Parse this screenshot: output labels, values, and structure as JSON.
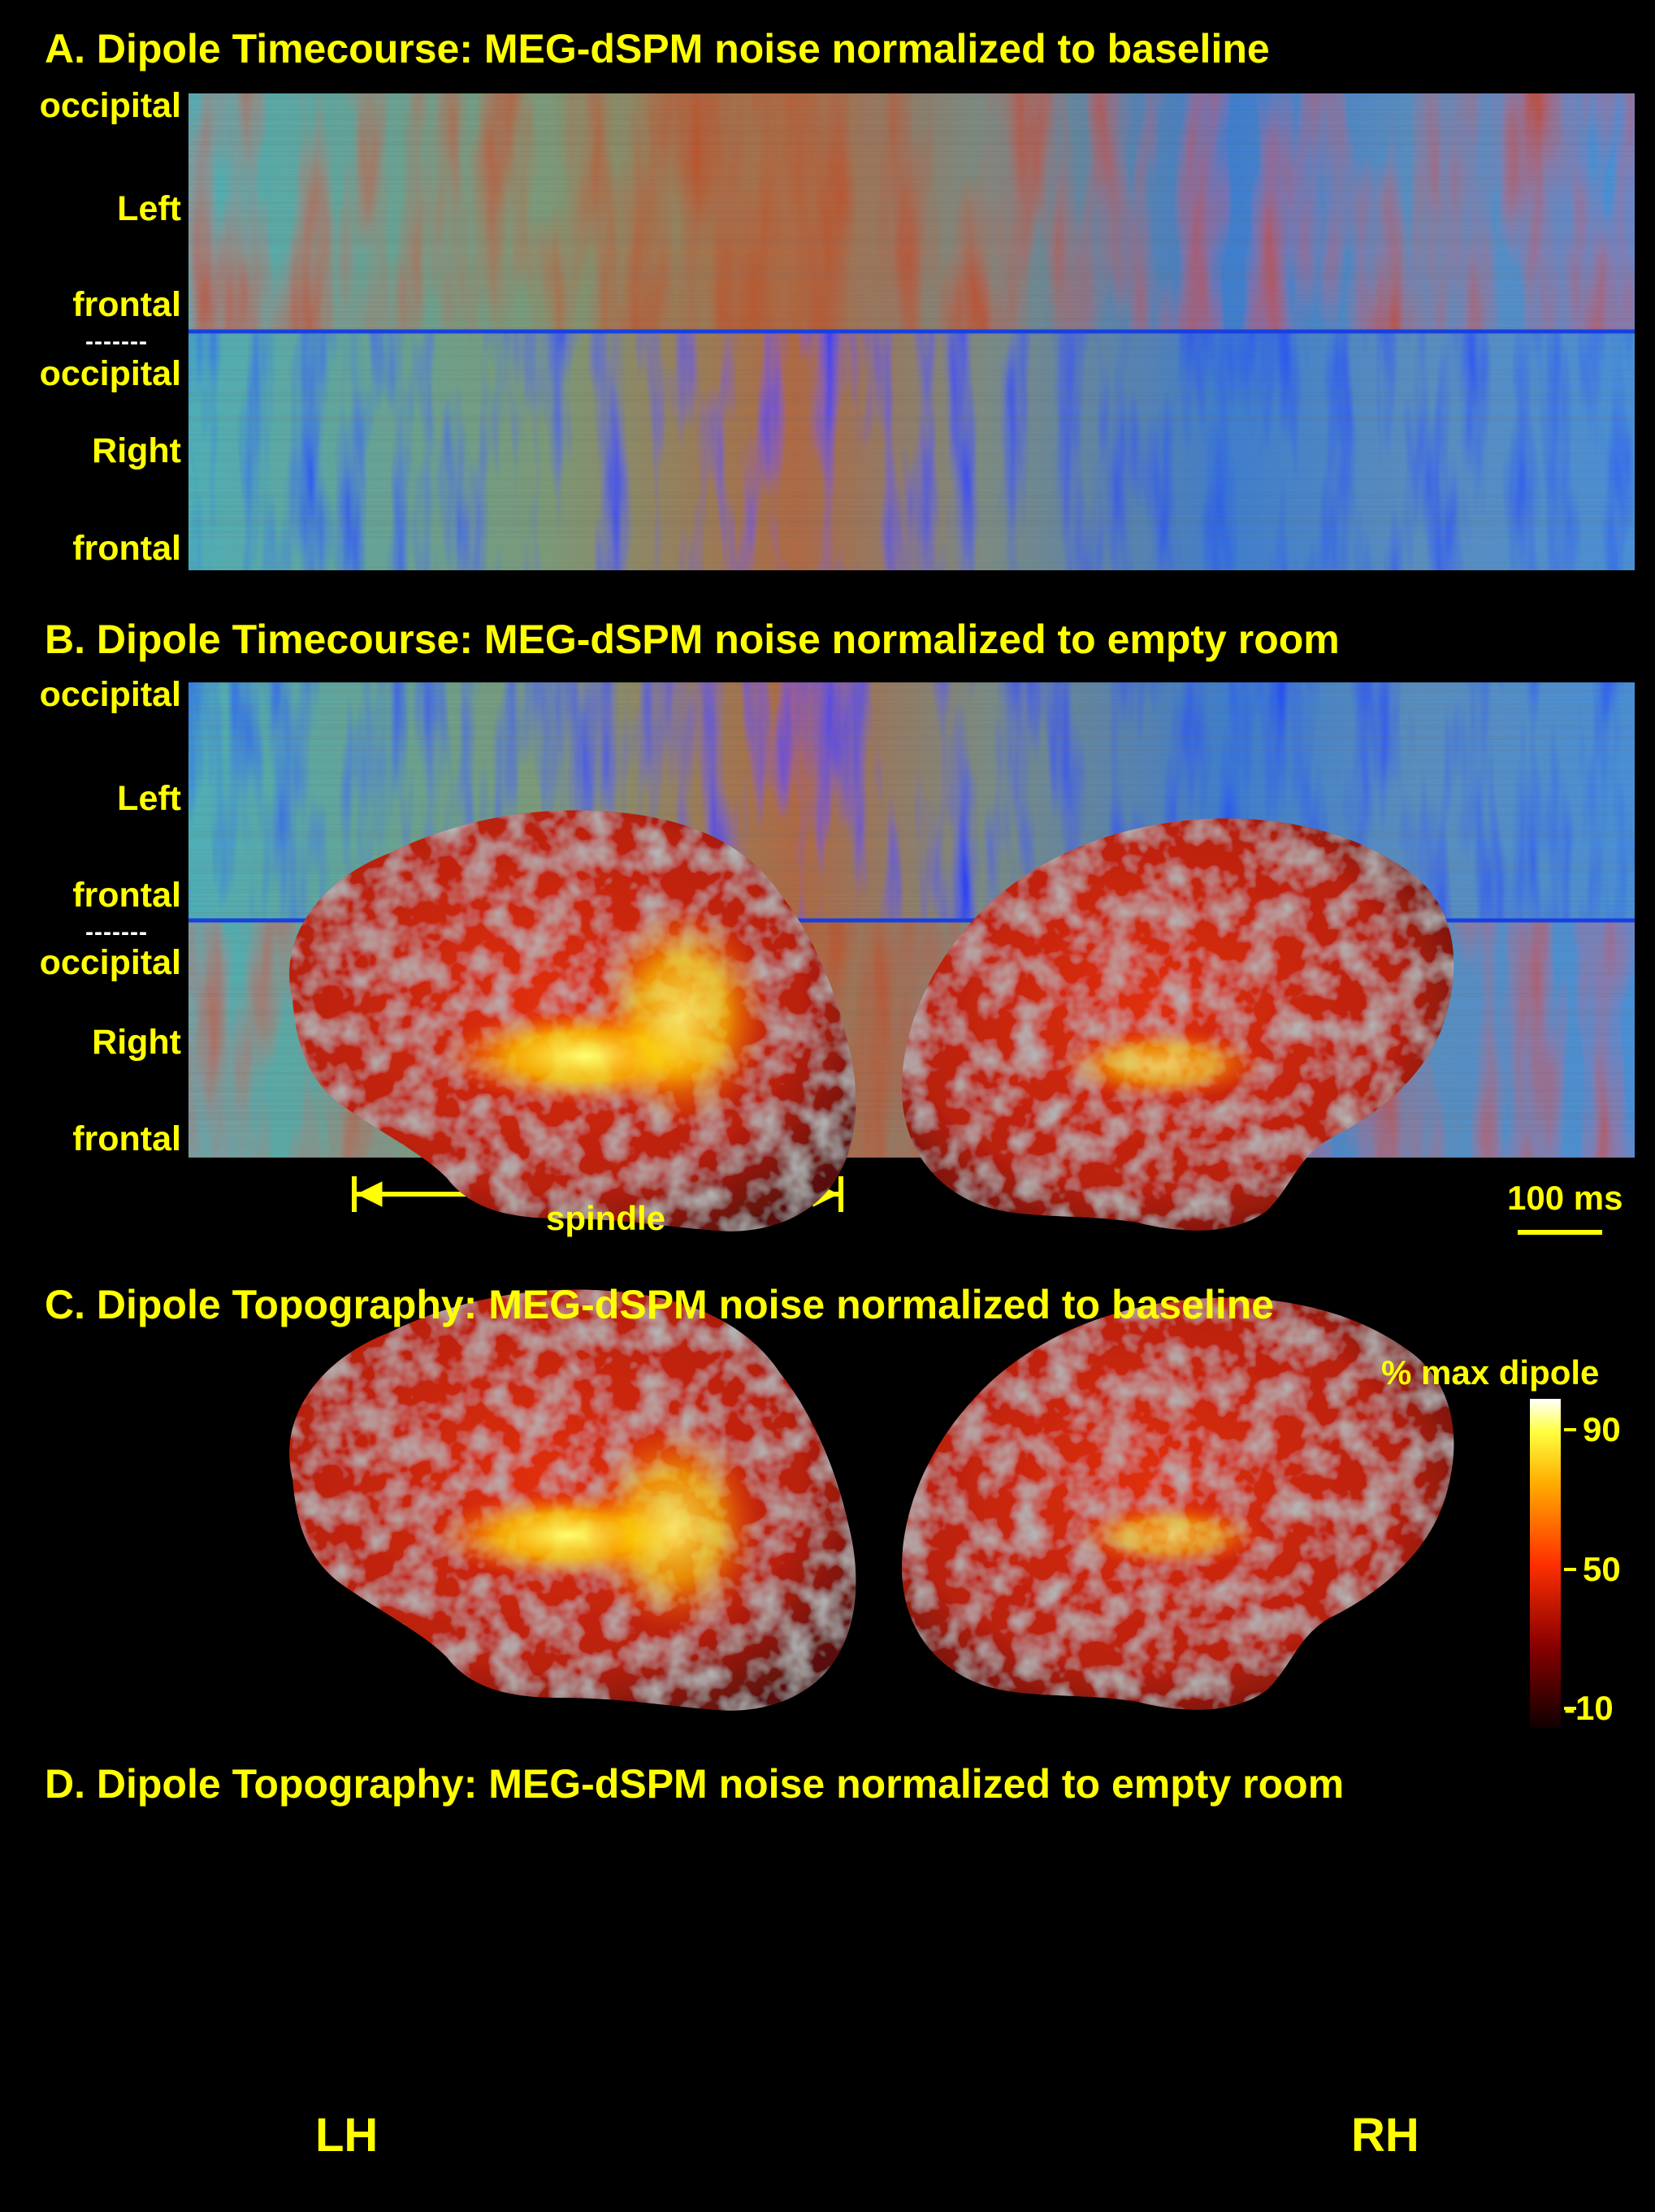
{
  "panels": {
    "a_title": "A. Dipole Timecourse: MEG-dSPM noise normalized to baseline",
    "b_title": "B. Dipole Timecourse: MEG-dSPM noise normalized to empty room",
    "c_title": "C. Dipole Topography: MEG-dSPM noise normalized to baseline",
    "d_title": "D. Dipole Topography: MEG-dSPM noise normalized to empty room"
  },
  "row_labels": {
    "occipital": "occipital",
    "left": "Left",
    "frontal": "frontal",
    "right": "Right",
    "separator": "-------"
  },
  "annotations": {
    "spindle": "spindle",
    "scale_bar": "100 ms"
  },
  "colorbar": {
    "title": "% max dipole",
    "ticks": [
      "90",
      "50",
      "-10"
    ]
  },
  "hemispheres": {
    "left": "LH",
    "right": "RH"
  },
  "colors": {
    "text": "#ffff00",
    "background": "#000000",
    "heat_low": "#3a0000",
    "heat_mid": "#ff2a00",
    "heat_high": "#ffff80"
  }
}
